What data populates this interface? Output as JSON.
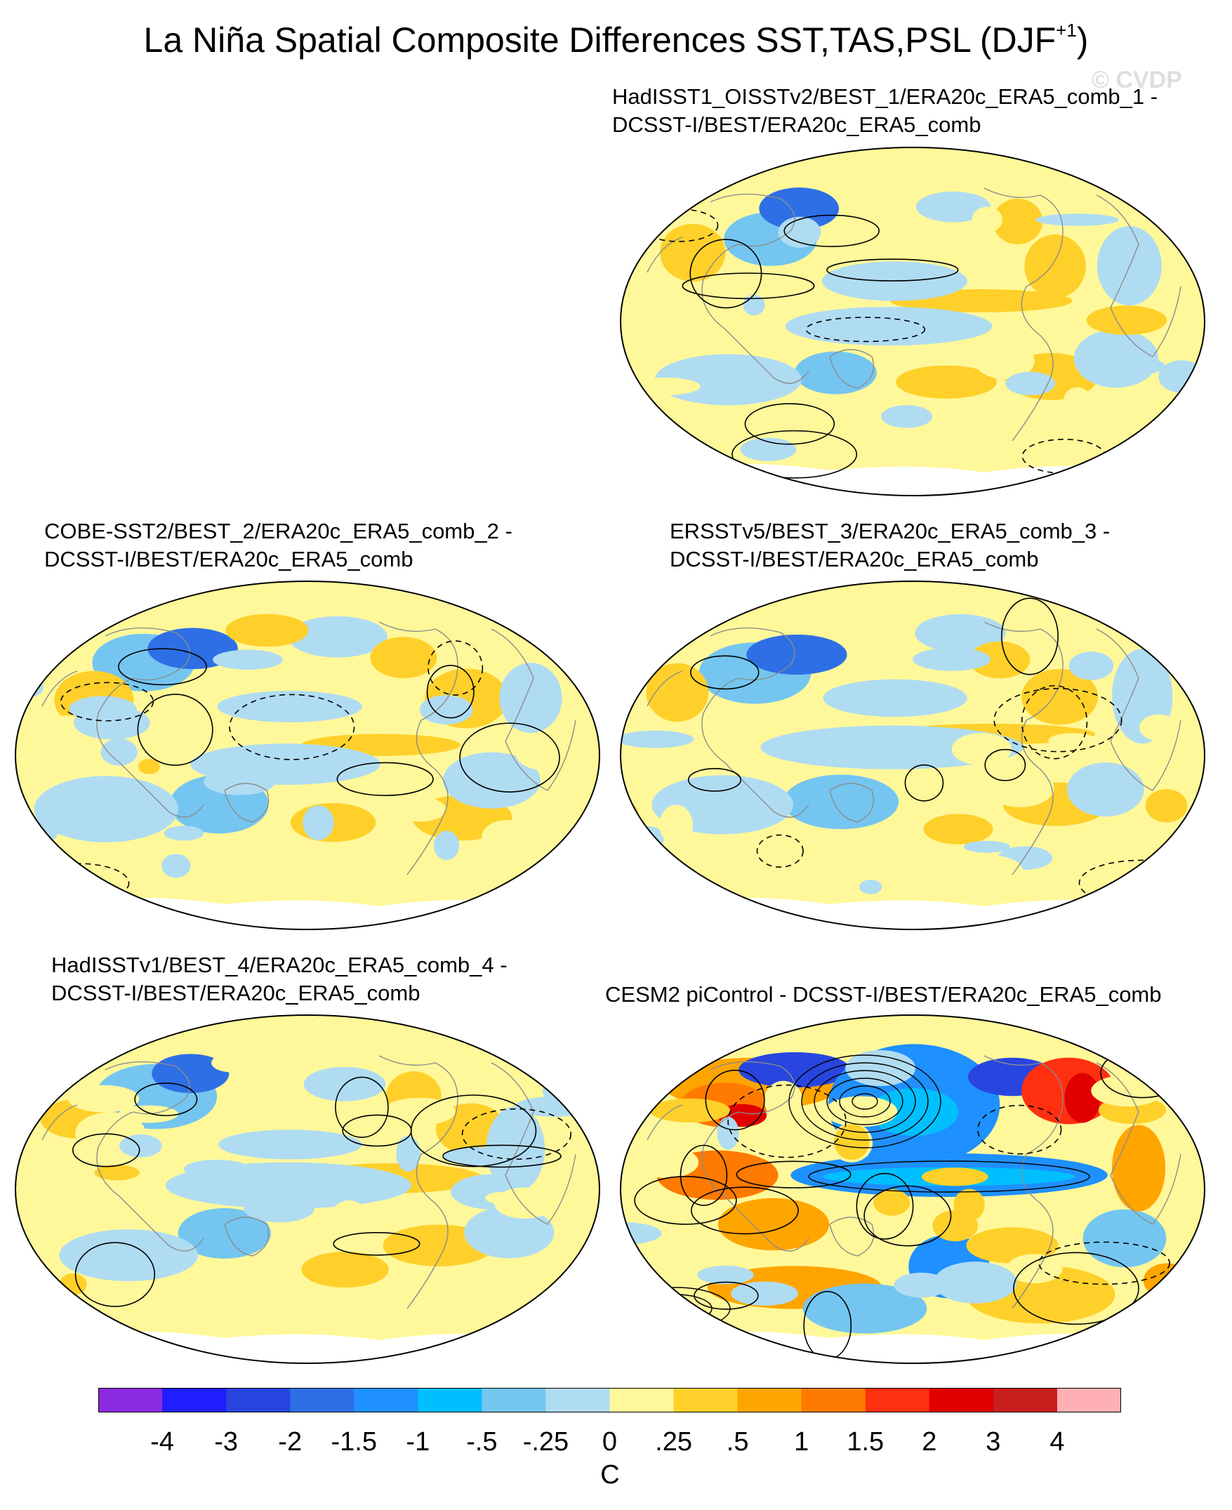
{
  "title": {
    "main": "La Niña Spatial Composite Differences SST,TAS,PSL (DJF",
    "superscript": "+1",
    "close": ")"
  },
  "watermark": "© CVDP",
  "panels": [
    {
      "id": "hadisst1-oisstv2",
      "line1": "HadISST1_OISSTv2/BEST_1/ERA20c_ERA5_comb_1 -",
      "line2": "DCSST-I/BEST/ERA20c_ERA5_comb",
      "intensity": "weak"
    },
    {
      "id": "cobe-sst2",
      "line1": "COBE-SST2/BEST_2/ERA20c_ERA5_comb_2 -",
      "line2": "DCSST-I/BEST/ERA20c_ERA5_comb",
      "intensity": "weak"
    },
    {
      "id": "ersstv5",
      "line1": "ERSSTv5/BEST_3/ERA20c_ERA5_comb_3 -",
      "line2": "DCSST-I/BEST/ERA20c_ERA5_comb",
      "intensity": "weak"
    },
    {
      "id": "hadisstv1",
      "line1": "HadISSTv1/BEST_4/ERA20c_ERA5_comb_4 -",
      "line2": "DCSST-I/BEST/ERA20c_ERA5_comb",
      "intensity": "weak"
    },
    {
      "id": "cesm2-picontrol",
      "line1": "CESM2 piControl - DCSST-I/BEST/ERA20c_ERA5_comb",
      "line2": "",
      "intensity": "strong"
    }
  ],
  "colorbar": {
    "colors": [
      "#8a2be2",
      "#1e1eff",
      "#2845e0",
      "#2e6fe6",
      "#1e90ff",
      "#00bfff",
      "#74c6f0",
      "#b0dcf2",
      "#fff89a",
      "#ffd02a",
      "#ffa500",
      "#ff7a00",
      "#ff3010",
      "#e00000",
      "#c81e1e",
      "#ffb0b4"
    ],
    "tick_labels": [
      "-4",
      "-3",
      "-2",
      "-1.5",
      "-1",
      "-.5",
      "-.25",
      "0",
      ".25",
      ".5",
      "1",
      "1.5",
      "2",
      "3",
      "4"
    ],
    "units": "C"
  }
}
